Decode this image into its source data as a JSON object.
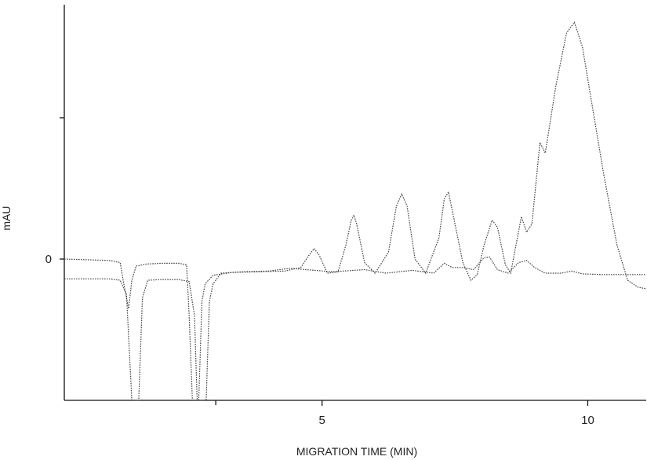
{
  "chart_data": {
    "type": "line",
    "title": "",
    "xlabel": "MIGRATION TIME (MIN)",
    "ylabel": "mAU",
    "xlim": [
      0.15,
      11.1
    ],
    "ylim": [
      -2,
      3.6
    ],
    "x_ticks": [
      5,
      10
    ],
    "x_minor_ticks": [
      3
    ],
    "y_ticks": [
      0
    ],
    "y_minor_ticks": [
      2
    ],
    "grid": false,
    "legend": "none",
    "series": [
      {
        "style": "dotted",
        "color": "#444444",
        "points": [
          [
            0.15,
            0.0
          ],
          [
            1.0,
            -0.02
          ],
          [
            1.2,
            -0.05
          ],
          [
            1.28,
            -0.4
          ],
          [
            1.36,
            -0.7
          ],
          [
            1.42,
            -0.3
          ],
          [
            1.5,
            -0.1
          ],
          [
            1.7,
            -0.07
          ],
          [
            2.0,
            -0.06
          ],
          [
            2.3,
            -0.06
          ],
          [
            2.45,
            -0.08
          ],
          [
            2.5,
            -0.8
          ],
          [
            2.56,
            -2.0
          ],
          [
            2.68,
            -2.0
          ],
          [
            2.74,
            -0.6
          ],
          [
            2.8,
            -0.35
          ],
          [
            2.95,
            -0.23
          ],
          [
            3.3,
            -0.19
          ],
          [
            3.8,
            -0.18
          ],
          [
            4.3,
            -0.17
          ],
          [
            4.6,
            -0.12
          ],
          [
            4.75,
            0.05
          ],
          [
            4.85,
            0.15
          ],
          [
            4.95,
            0.05
          ],
          [
            5.1,
            -0.2
          ],
          [
            5.3,
            -0.18
          ],
          [
            5.45,
            0.2
          ],
          [
            5.55,
            0.55
          ],
          [
            5.6,
            0.62
          ],
          [
            5.65,
            0.5
          ],
          [
            5.8,
            -0.05
          ],
          [
            6.0,
            -0.2
          ],
          [
            6.25,
            0.1
          ],
          [
            6.4,
            0.75
          ],
          [
            6.5,
            0.92
          ],
          [
            6.6,
            0.75
          ],
          [
            6.75,
            0.0
          ],
          [
            6.95,
            -0.2
          ],
          [
            7.2,
            0.3
          ],
          [
            7.3,
            0.85
          ],
          [
            7.38,
            0.95
          ],
          [
            7.5,
            0.5
          ],
          [
            7.65,
            -0.05
          ],
          [
            7.8,
            -0.3
          ],
          [
            7.92,
            -0.22
          ],
          [
            8.05,
            0.2
          ],
          [
            8.2,
            0.55
          ],
          [
            8.3,
            0.45
          ],
          [
            8.45,
            -0.08
          ],
          [
            8.55,
            -0.2
          ],
          [
            8.65,
            0.2
          ],
          [
            8.75,
            0.6
          ],
          [
            8.85,
            0.38
          ],
          [
            8.95,
            0.5
          ],
          [
            9.1,
            1.65
          ],
          [
            9.2,
            1.5
          ],
          [
            9.4,
            2.45
          ],
          [
            9.6,
            3.2
          ],
          [
            9.75,
            3.35
          ],
          [
            9.9,
            3.0
          ],
          [
            10.1,
            2.1
          ],
          [
            10.3,
            1.2
          ],
          [
            10.55,
            0.2
          ],
          [
            10.75,
            -0.3
          ],
          [
            10.95,
            -0.4
          ],
          [
            11.1,
            -0.42
          ]
        ]
      },
      {
        "style": "dotted",
        "color": "#444444",
        "points": [
          [
            0.15,
            -0.28
          ],
          [
            1.0,
            -0.28
          ],
          [
            1.2,
            -0.3
          ],
          [
            1.32,
            -0.5
          ],
          [
            1.42,
            -2.0
          ],
          [
            1.55,
            -2.0
          ],
          [
            1.62,
            -0.55
          ],
          [
            1.72,
            -0.3
          ],
          [
            2.0,
            -0.29
          ],
          [
            2.3,
            -0.29
          ],
          [
            2.5,
            -0.32
          ],
          [
            2.6,
            -0.8
          ],
          [
            2.65,
            -2.0
          ],
          [
            2.82,
            -2.0
          ],
          [
            2.88,
            -0.6
          ],
          [
            2.95,
            -0.35
          ],
          [
            3.1,
            -0.2
          ],
          [
            3.5,
            -0.18
          ],
          [
            4.0,
            -0.17
          ],
          [
            4.4,
            -0.13
          ],
          [
            4.7,
            -0.15
          ],
          [
            5.2,
            -0.18
          ],
          [
            5.8,
            -0.15
          ],
          [
            6.2,
            -0.2
          ],
          [
            6.7,
            -0.16
          ],
          [
            7.1,
            -0.2
          ],
          [
            7.3,
            -0.06
          ],
          [
            7.45,
            -0.12
          ],
          [
            7.65,
            -0.12
          ],
          [
            7.85,
            -0.15
          ],
          [
            8.05,
            0.02
          ],
          [
            8.15,
            0.03
          ],
          [
            8.3,
            -0.15
          ],
          [
            8.5,
            -0.2
          ],
          [
            8.7,
            -0.05
          ],
          [
            8.85,
            -0.02
          ],
          [
            9.0,
            -0.12
          ],
          [
            9.2,
            -0.2
          ],
          [
            9.5,
            -0.2
          ],
          [
            9.7,
            -0.17
          ],
          [
            9.9,
            -0.21
          ],
          [
            10.3,
            -0.22
          ],
          [
            10.7,
            -0.22
          ],
          [
            11.1,
            -0.22
          ]
        ]
      }
    ]
  }
}
